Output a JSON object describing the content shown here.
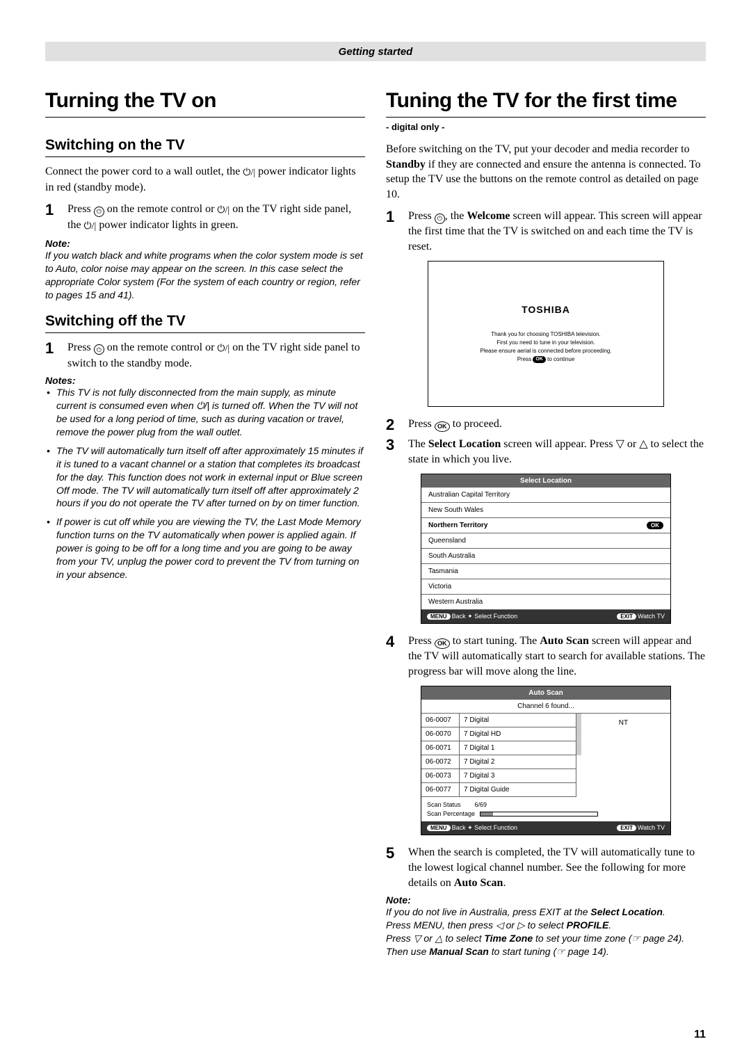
{
  "header": "Getting started",
  "left": {
    "h1": "Turning the TV on",
    "sec1": {
      "h2": "Switching on the TV",
      "intro": "Connect the power cord to a wall outlet, the ⏻/| power indicator lights in red (standby mode).",
      "step1": "Press ⓘ on the remote control or ⏻/| on the TV right side panel, the ⏻/| power indicator lights in green.",
      "note_head": "Note:",
      "note_body": "If you watch black and white programs when the color system mode is set to Auto, color noise may appear on the screen. In this case select the appropriate Color system (For the system of each country or region, refer to pages 15 and 41)."
    },
    "sec2": {
      "h2": "Switching off the TV",
      "step1": "Press ⓘ on the remote control or ⏻/| on the TV right side panel to switch to the standby mode.",
      "notes_head": "Notes:",
      "notes": [
        "This TV is not fully disconnected from the main supply, as minute current is consumed even when ⏻/| is turned off. When the TV will not be used for a long period of time, such as during vacation or travel, remove the power plug from the wall outlet.",
        "The TV will automatically turn itself off after approximately 15 minutes if it is tuned to a vacant channel or a station that completes its broadcast for the day. This function does not work in external input or Blue screen Off mode. The TV will automatically turn itself off after approximately 2 hours if you do not operate the TV after turned on by on timer function.",
        "If power is cut off while you are viewing the TV, the Last Mode Memory function turns on the TV automatically when power is applied again. If power is going to be off for a long time and you are going to be away from your TV, unplug the power cord to prevent the TV from turning on in your absence."
      ]
    }
  },
  "right": {
    "h1": "Tuning the TV for the first time",
    "sub": "- digital only -",
    "intro_pre": "Before switching on the TV, put your decoder and media recorder to ",
    "intro_bold": "Standby",
    "intro_post": " if they are connected and ensure the antenna is connected. To setup the TV use the buttons on the remote control as detailed on page 10.",
    "step1_pre": "Press ⓘ, the ",
    "step1_bold": "Welcome",
    "step1_post": " screen will appear. This screen will appear the first time that the TV is switched on and each time the TV is reset.",
    "welcome": {
      "logo": "TOSHIBA",
      "l1": "Thank you for choosing TOSHIBA television.",
      "l2": "First you need to tune in your television.",
      "l3": "Please ensure aerial is connected before proceeding.",
      "l4a": "Press",
      "l4b": "OK",
      "l4c": "to continue"
    },
    "step2": "Press OK to proceed.",
    "step3_pre": "The ",
    "step3_bold": "Select Location",
    "step3_post": " screen will appear. Press ▽ or △ to select the state in which you live.",
    "selLoc": {
      "title": "Select Location",
      "rows": [
        "Australian Capital Territory",
        "New South Wales",
        "Northern Territory",
        "Queensland",
        "South Australia",
        "Tasmania",
        "Victoria",
        "Western Australia"
      ],
      "selectedIndex": 2,
      "ok": "OK",
      "foot_left_badge": "MENU",
      "foot_left": "Back ✦ Select Function",
      "foot_right_badge": "EXIT",
      "foot_right": "Watch TV"
    },
    "step4_pre": "Press OK to start tuning. The ",
    "step4_bold": "Auto Scan",
    "step4_post": " screen will appear and the TV will automatically start to search for available stations. The progress bar will move along the line.",
    "autoscan": {
      "title": "Auto Scan",
      "sub": "Channel 6 found...",
      "side": "NT",
      "rows": [
        [
          "06-0007",
          "7 Digital"
        ],
        [
          "06-0070",
          "7 Digital HD"
        ],
        [
          "06-0071",
          "7 Digital 1"
        ],
        [
          "06-0072",
          "7 Digital 2"
        ],
        [
          "06-0073",
          "7 Digital 3"
        ],
        [
          "06-0077",
          "7 Digital Guide"
        ]
      ],
      "status_label": "Scan Status",
      "status_val": "6/69",
      "percent_label": "Scan Percentage"
    },
    "step5_pre": "When the search is completed, the TV will automatically tune to the lowest logical channel number. See the following for more details on ",
    "step5_bold": "Auto Scan",
    "step5_post": ".",
    "note": {
      "head": "Note:",
      "l1a": "If you do not live in Australia, press EXIT at the ",
      "l1b": "Select Location",
      "l1c": ".",
      "l2a": "Press MENU, then press ◁ or ▷ to select ",
      "l2b": "PROFILE",
      "l2c": ".",
      "l3a": "Press ▽ or △ to select ",
      "l3b": "Time Zone",
      "l3c": " to set your time zone (☞ page 24).",
      "l4a": "Then use ",
      "l4b": "Manual Scan",
      "l4c": " to start tuning (☞ page 14)."
    }
  },
  "page_number": "11"
}
